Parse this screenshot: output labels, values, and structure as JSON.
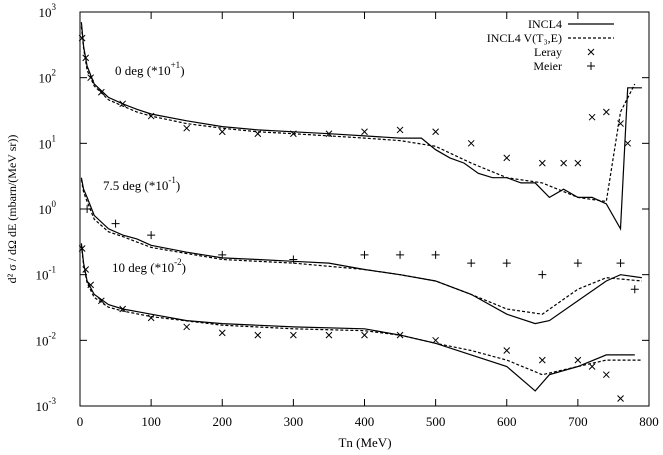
{
  "chart_data": {
    "type": "line",
    "xlabel": "Tn (MeV)",
    "ylabel": "d² σ / dΩ dE (mbarn/(MeV sr))",
    "xlim": [
      0,
      800
    ],
    "xticks": [
      0,
      100,
      200,
      300,
      400,
      500,
      600,
      700,
      800
    ],
    "ylim": [
      0.001,
      1000
    ],
    "yscale": "log",
    "yticks": [
      {
        "value": 0.001,
        "label": "10",
        "exponent": "-3"
      },
      {
        "value": 0.01,
        "label": "10",
        "exponent": "-2"
      },
      {
        "value": 0.1,
        "label": "10",
        "exponent": "-1"
      },
      {
        "value": 1,
        "label": "10",
        "exponent": "0"
      },
      {
        "value": 10,
        "label": "10",
        "exponent": "1"
      },
      {
        "value": 100,
        "label": "10",
        "exponent": "2"
      },
      {
        "value": 1000,
        "label": "10",
        "exponent": "3"
      }
    ],
    "annotations": [
      {
        "text": "0 deg (*10",
        "sup": "+1",
        "end": ")"
      },
      {
        "text": "7.5 deg (*10",
        "sup": "-1",
        "end": ")"
      },
      {
        "text": "10 deg (*10",
        "sup": "-2",
        "end": ")"
      }
    ],
    "legend": "upper right",
    "series": [
      {
        "name": "INCL4",
        "color": "#000000",
        "style": "solid",
        "x": [
          2,
          5,
          10,
          20,
          40,
          60,
          80,
          100,
          150,
          200,
          250,
          300,
          350,
          400,
          450,
          480,
          500,
          520,
          540,
          560,
          580,
          600,
          620,
          640,
          660,
          680,
          700,
          720,
          740,
          760,
          770,
          790,
          null,
          2,
          5,
          10,
          20,
          40,
          60,
          80,
          100,
          150,
          200,
          250,
          300,
          350,
          400,
          450,
          500,
          550,
          600,
          640,
          660,
          700,
          740,
          760,
          790,
          null,
          2,
          5,
          10,
          20,
          40,
          60,
          100,
          150,
          200,
          300,
          400,
          450,
          500,
          550,
          600,
          640,
          660,
          700,
          740,
          780
        ],
        "values": [
          700,
          300,
          150,
          80,
          50,
          40,
          33,
          28,
          22,
          18,
          16,
          15,
          14,
          13,
          12,
          12,
          8,
          6,
          5,
          3.5,
          3,
          3,
          2.5,
          2.5,
          1.5,
          2,
          1.5,
          1.5,
          1.2,
          0.5,
          70,
          70,
          null,
          3,
          2,
          1.5,
          0.8,
          0.5,
          0.4,
          0.35,
          0.28,
          0.22,
          0.18,
          0.17,
          0.16,
          0.15,
          0.12,
          0.1,
          0.08,
          0.05,
          0.025,
          0.018,
          0.02,
          0.04,
          0.08,
          0.1,
          0.09,
          null,
          0.3,
          0.15,
          0.08,
          0.05,
          0.035,
          0.03,
          0.025,
          0.02,
          0.018,
          0.016,
          0.015,
          0.012,
          0.009,
          0.006,
          0.004,
          0.0017,
          0.003,
          0.004,
          0.006,
          0.006
        ]
      },
      {
        "name": "INCL4  V(T₃,E)",
        "color": "#000000",
        "style": "dashed",
        "x": [
          2,
          5,
          10,
          20,
          40,
          60,
          80,
          100,
          150,
          200,
          250,
          300,
          350,
          400,
          450,
          500,
          550,
          600,
          650,
          700,
          740,
          760,
          780,
          null,
          2,
          5,
          10,
          20,
          40,
          60,
          100,
          150,
          200,
          300,
          400,
          450,
          500,
          550,
          600,
          650,
          700,
          740,
          790,
          null,
          2,
          5,
          10,
          20,
          40,
          60,
          100,
          200,
          300,
          400,
          450,
          500,
          550,
          600,
          650,
          700,
          740,
          790
        ],
        "values": [
          600,
          280,
          130,
          75,
          46,
          37,
          30,
          26,
          20,
          17,
          15,
          14,
          13,
          12,
          11,
          9,
          5,
          3,
          2.5,
          1.5,
          1.3,
          30,
          80,
          null,
          2.8,
          1.8,
          1.3,
          0.7,
          0.45,
          0.38,
          0.26,
          0.21,
          0.17,
          0.15,
          0.12,
          0.1,
          0.08,
          0.05,
          0.03,
          0.025,
          0.06,
          0.09,
          0.08,
          null,
          0.28,
          0.14,
          0.075,
          0.045,
          0.032,
          0.028,
          0.023,
          0.017,
          0.015,
          0.014,
          0.012,
          0.009,
          0.007,
          0.005,
          0.003,
          0.004,
          0.005,
          0.005
        ]
      },
      {
        "name": "Leray",
        "color": "#000000",
        "style": "x",
        "x": [
          3,
          8,
          15,
          30,
          60,
          100,
          150,
          200,
          250,
          300,
          350,
          400,
          450,
          500,
          550,
          600,
          650,
          680,
          700,
          720,
          740,
          760,
          770,
          null,
          3,
          8,
          15,
          30,
          60,
          100,
          150,
          200,
          250,
          300,
          350,
          400,
          450,
          500,
          600,
          650,
          700,
          720,
          740,
          760
        ],
        "values": [
          400,
          200,
          100,
          60,
          40,
          26,
          17,
          15,
          14,
          14,
          14,
          15,
          16,
          15,
          10,
          6,
          5,
          5,
          5,
          25,
          30,
          20,
          10,
          null,
          0.25,
          0.12,
          0.07,
          0.04,
          0.03,
          0.022,
          0.016,
          0.013,
          0.012,
          0.012,
          0.012,
          0.012,
          0.012,
          0.01,
          0.007,
          0.005,
          0.005,
          0.004,
          0.003,
          0.0013
        ]
      },
      {
        "name": "Meier",
        "color": "#000000",
        "style": "plus",
        "x": [
          10,
          50,
          100,
          200,
          300,
          400,
          450,
          500,
          550,
          600,
          650,
          700,
          760,
          780
        ],
        "values": [
          1,
          0.6,
          0.4,
          0.2,
          0.17,
          0.2,
          0.2,
          0.2,
          0.15,
          0.15,
          0.1,
          0.15,
          0.15,
          0.06
        ]
      }
    ]
  }
}
